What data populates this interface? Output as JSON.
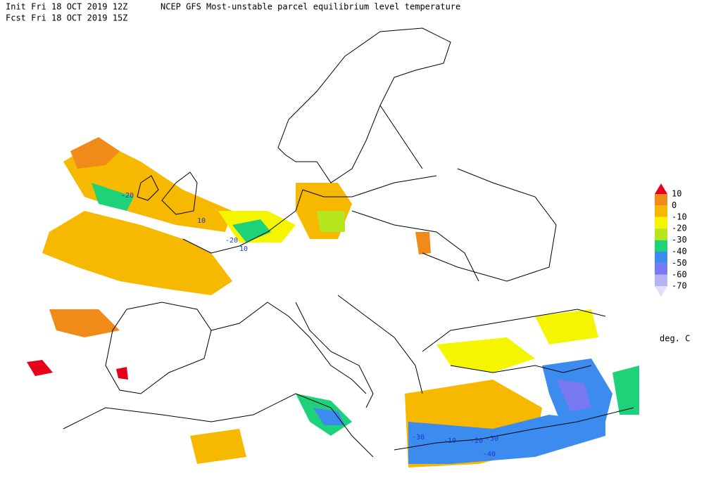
{
  "header": {
    "init": "Init  Fri 18 OCT 2019 12Z",
    "fcst": "Fcst Fri 18 OCT 2019 15Z",
    "title": "NCEP GFS Most-unstable parcel equilibrium level temperature"
  },
  "legend": {
    "labels": [
      "10",
      "0",
      "-10",
      "-20",
      "-30",
      "-40",
      "-50",
      "-60",
      "-70"
    ],
    "colors": [
      "#e8001a",
      "#f08a18",
      "#f7b800",
      "#f5f500",
      "#b8e61e",
      "#1ed27a",
      "#3c8cf0",
      "#7878f0",
      "#b4b4f5",
      "#e0e0fa"
    ],
    "unit": "deg. C"
  },
  "contour_labels": [
    "-20",
    "10",
    "-20",
    "10",
    "-30",
    "-10",
    "-20",
    "-30",
    "-40"
  ]
}
